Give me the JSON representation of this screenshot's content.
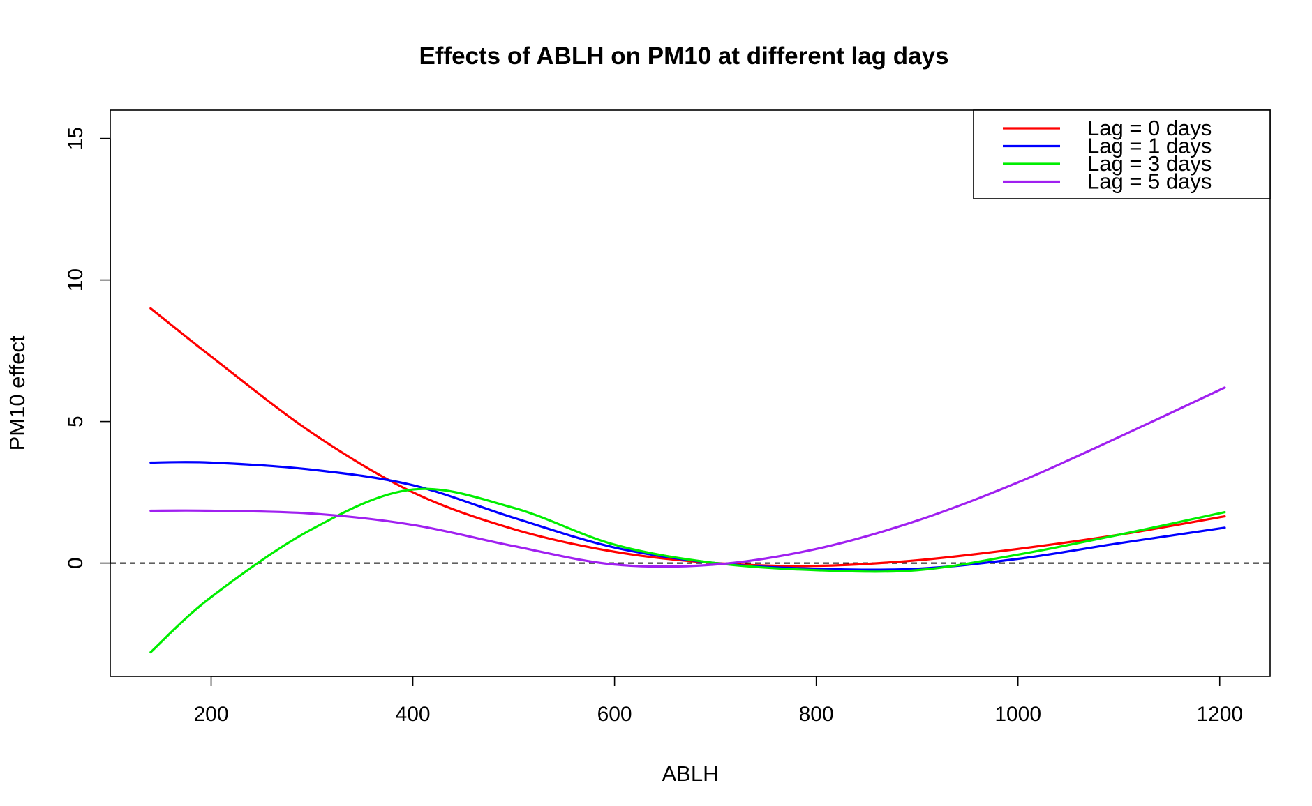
{
  "chart_data": {
    "type": "line",
    "title": "Effects of ABLH on PM10 at different lag days",
    "xlabel": "ABLH",
    "ylabel": "PM10 effect",
    "xlim": [
      100,
      1250
    ],
    "ylim": [
      -4,
      16
    ],
    "xticks": [
      200,
      400,
      600,
      800,
      1000,
      1200
    ],
    "yticks": [
      0,
      5,
      10,
      15
    ],
    "reference_line": {
      "y": 0,
      "style": "dashed",
      "color": "#000000"
    },
    "legend_position": "top-right",
    "grid": false,
    "x": [
      140,
      200,
      300,
      400,
      500,
      600,
      700,
      800,
      900,
      1000,
      1100,
      1205
    ],
    "series": [
      {
        "name": "Lag = 0 days",
        "color": "#FF0000",
        "values": [
          9.0,
          7.3,
          4.6,
          2.5,
          1.2,
          0.4,
          0.0,
          -0.1,
          0.1,
          0.5,
          1.0,
          1.65
        ]
      },
      {
        "name": "Lag = 1 days",
        "color": "#0000FF",
        "values": [
          3.55,
          3.55,
          3.3,
          2.75,
          1.6,
          0.55,
          0.0,
          -0.2,
          -0.2,
          0.15,
          0.7,
          1.25
        ]
      },
      {
        "name": "Lag = 3 days",
        "color": "#00EE00",
        "values": [
          -3.15,
          -1.2,
          1.2,
          2.6,
          1.95,
          0.65,
          0.0,
          -0.25,
          -0.25,
          0.3,
          1.0,
          1.8
        ]
      },
      {
        "name": "Lag = 5 days",
        "color": "#A020F0",
        "values": [
          1.85,
          1.85,
          1.75,
          1.35,
          0.6,
          -0.05,
          -0.05,
          0.5,
          1.5,
          2.85,
          4.45,
          6.2
        ]
      }
    ]
  }
}
